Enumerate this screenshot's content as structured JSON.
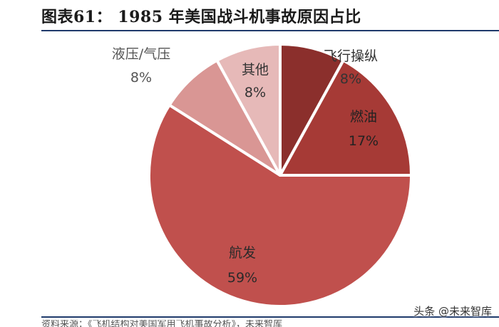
{
  "header": {
    "title": "图表61： 1985 年美国战斗机事故原因占比"
  },
  "footer": {
    "source_text": "资料来源：《飞机结构对美国军用飞机事故分析》，未来智库",
    "watermark": "头条 @未来智库"
  },
  "chart_data": {
    "type": "pie",
    "title": "1985 年美国战斗机事故原因占比",
    "start_angle_deg": 0,
    "direction": "clockwise",
    "legend": "none",
    "slices": [
      {
        "name": "飞行操纵",
        "value": 8,
        "label": "8%",
        "color": "#8b2f2c",
        "text_color": "#333333"
      },
      {
        "name": "燃油",
        "value": 17,
        "label": "17%",
        "color": "#a63a36",
        "text_color": "#222222"
      },
      {
        "name": "航发",
        "value": 59,
        "label": "59%",
        "color": "#c0504d",
        "text_color": "#2a2a2a"
      },
      {
        "name": "液压/气压",
        "value": 8,
        "label": "8%",
        "color": "#d99694",
        "text_color": "#555555"
      },
      {
        "name": "其他",
        "value": 8,
        "label": "8%",
        "color": "#e6b9b8",
        "text_color": "#333333"
      }
    ]
  }
}
